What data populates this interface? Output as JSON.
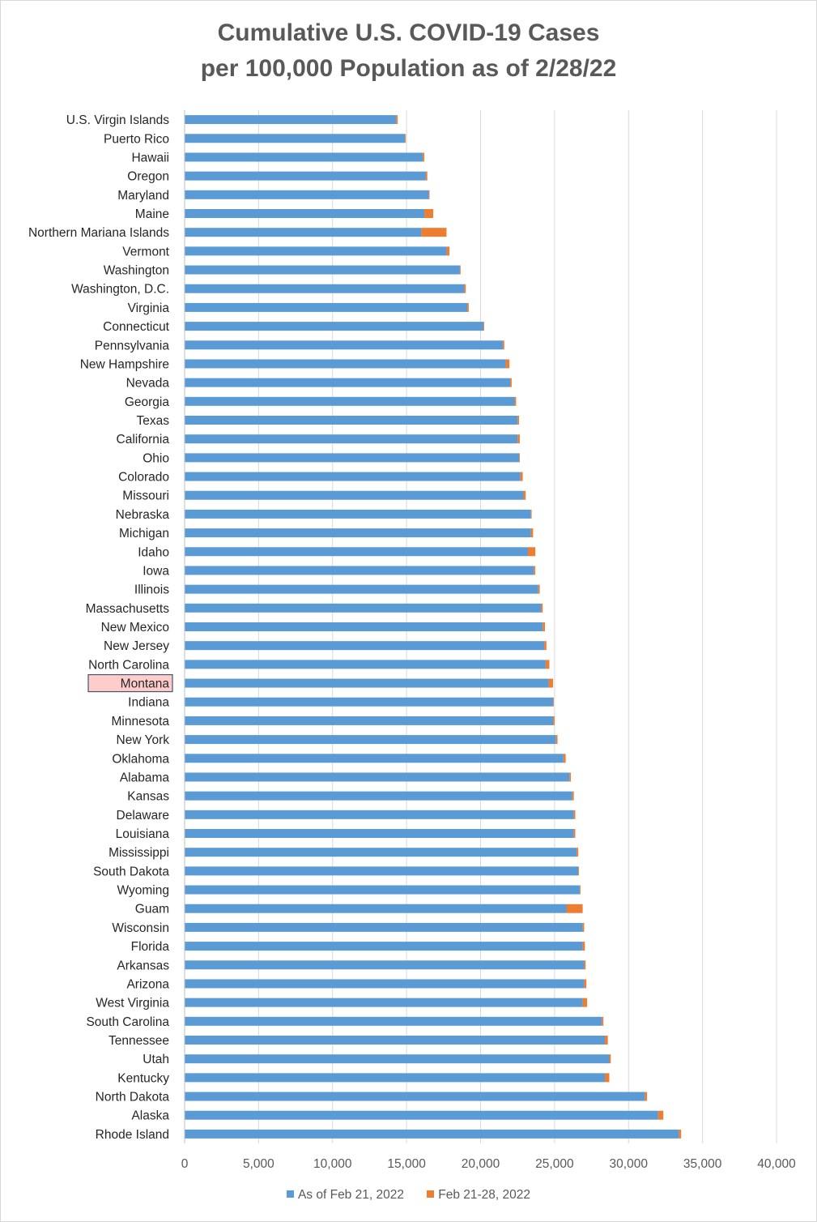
{
  "chart_data": {
    "type": "bar",
    "orientation": "horizontal",
    "stacked": true,
    "title": "Cumulative U.S. COVID-19 Cases per 100,000 Population as of 2/28/22",
    "title_lines": [
      "Cumulative U.S. COVID-19 Cases",
      "per 100,000 Population as of 2/28/22"
    ],
    "xlim": [
      0,
      40000
    ],
    "x_ticks": [
      0,
      5000,
      10000,
      15000,
      20000,
      25000,
      30000,
      35000,
      40000
    ],
    "x_tick_labels": [
      "0",
      "5,000",
      "10,000",
      "15,000",
      "20,000",
      "25,000",
      "30,000",
      "35,000",
      "40,000"
    ],
    "grid": "vertical",
    "legend_position": "bottom",
    "highlighted_category": "Montana",
    "categories": [
      "U.S. Virgin Islands",
      "Puerto Rico",
      "Hawaii",
      "Oregon",
      "Maryland",
      "Maine",
      "Northern Mariana Islands",
      "Vermont",
      "Washington",
      "Washington, D.C.",
      "Virginia",
      "Connecticut",
      "Pennsylvania",
      "New Hampshire",
      "Nevada",
      "Georgia",
      "Texas",
      "California",
      "Ohio",
      "Colorado",
      "Missouri",
      "Nebraska",
      "Michigan",
      "Idaho",
      "Iowa",
      "Illinois",
      "Massachusetts",
      "New Mexico",
      "New Jersey",
      "North Carolina",
      "Montana",
      "Indiana",
      "Minnesota",
      "New York",
      "Oklahoma",
      "Alabama",
      "Kansas",
      "Delaware",
      "Louisiana",
      "Mississippi",
      "South Dakota",
      "Wyoming",
      "Guam",
      "Wisconsin",
      "Florida",
      "Arkansas",
      "Arizona",
      "West Virginia",
      "South Carolina",
      "Tennessee",
      "Utah",
      "Kentucky",
      "North Dakota",
      "Alaska",
      "Rhode Island"
    ],
    "series": [
      {
        "name": "As of Feb 21, 2022",
        "color": "#5b9bd5",
        "values": [
          14300,
          14900,
          16100,
          16300,
          16500,
          16200,
          16000,
          17700,
          18600,
          18900,
          19100,
          20200,
          21500,
          21700,
          22000,
          22300,
          22500,
          22500,
          22600,
          22700,
          22900,
          23400,
          23400,
          23200,
          23600,
          23900,
          24100,
          24200,
          24300,
          24400,
          24600,
          24900,
          24900,
          25100,
          25600,
          26000,
          26200,
          26300,
          26300,
          26500,
          26600,
          26700,
          25800,
          26900,
          26900,
          27000,
          27000,
          26900,
          28200,
          28400,
          28700,
          28400,
          31100,
          32000,
          33400
        ]
      },
      {
        "name": "Feb 21-28, 2022",
        "color": "#ed7d31",
        "values": [
          100,
          50,
          100,
          100,
          50,
          600,
          1700,
          200,
          50,
          100,
          100,
          50,
          100,
          250,
          100,
          100,
          100,
          150,
          50,
          150,
          150,
          50,
          150,
          500,
          100,
          100,
          100,
          150,
          150,
          250,
          300,
          50,
          100,
          100,
          150,
          100,
          100,
          100,
          100,
          100,
          50,
          50,
          1100,
          100,
          150,
          100,
          150,
          300,
          100,
          200,
          100,
          300,
          150,
          350,
          150
        ]
      }
    ]
  }
}
